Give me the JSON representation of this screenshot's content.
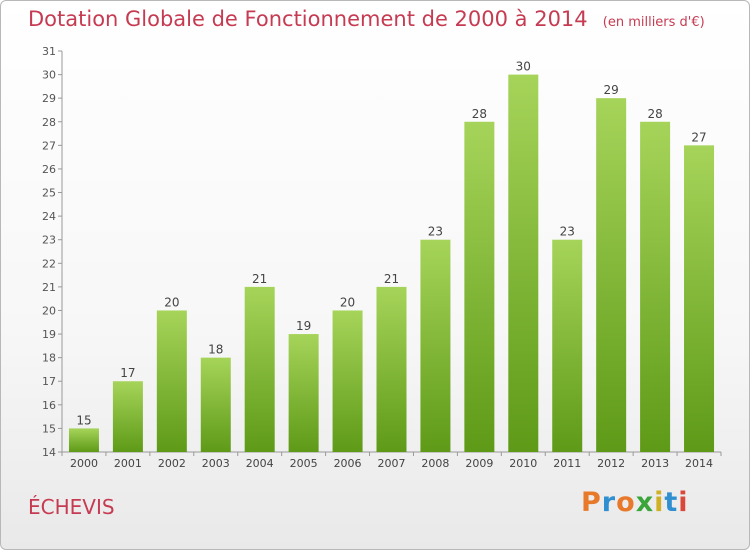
{
  "title": "Dotation Globale de Fonctionnement de 2000 à 2014",
  "unit": "(en milliers d'€)",
  "commune": "ÉCHEVIS",
  "logo": "Proxiti",
  "colors": {
    "bar_light": "#a6d45a",
    "bar_dark": "#5e9a17",
    "title": "#c63b52"
  },
  "chart_data": {
    "type": "bar",
    "title": "Dotation Globale de Fonctionnement de 2000 à 2014",
    "subtitle": "(en milliers d'€)",
    "xlabel": "",
    "ylabel": "",
    "categories": [
      "2000",
      "2001",
      "2002",
      "2003",
      "2004",
      "2005",
      "2006",
      "2007",
      "2008",
      "2009",
      "2010",
      "2011",
      "2012",
      "2013",
      "2014"
    ],
    "values": [
      15,
      17,
      20,
      18,
      21,
      19,
      20,
      21,
      23,
      28,
      30,
      23,
      29,
      28,
      27
    ],
    "ylim": [
      14,
      31
    ],
    "yticks": [
      14,
      15,
      16,
      17,
      18,
      19,
      20,
      21,
      22,
      23,
      24,
      25,
      26,
      27,
      28,
      29,
      30,
      31
    ],
    "grid": false,
    "legend": "none"
  }
}
